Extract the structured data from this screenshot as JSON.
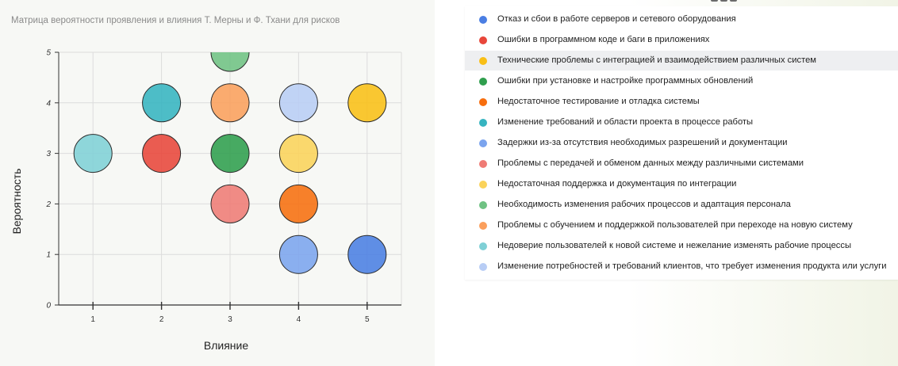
{
  "chart_data": {
    "type": "scatter",
    "title": "Матрица вероятности проявления и влияния Т. Мерны и Ф. Тхани для рисков",
    "xlabel": "Влияние",
    "ylabel": "Вероятность",
    "xlim": [
      0.5,
      5.5
    ],
    "ylim": [
      0,
      5
    ],
    "x_ticks": [
      "1",
      "2",
      "3",
      "4",
      "5"
    ],
    "y_ticks": [
      "0",
      "1",
      "2",
      "3",
      "4",
      "5"
    ],
    "grid": true,
    "legend_position": "right",
    "series": [
      {
        "name": "Отказ и сбои в работе серверов и сетевого оборудования",
        "color": "#4a7ee3",
        "x": 5,
        "y": 1
      },
      {
        "name": "Ошибки в программном коде и баги в приложениях",
        "color": "#e8463a",
        "x": 2,
        "y": 3
      },
      {
        "name": "Технические проблемы с интеграцией и взаимодействием различных систем",
        "color": "#f9bf16",
        "x": 5,
        "y": 4
      },
      {
        "name": "Ошибки при установке и настройке программных обновлений",
        "color": "#2f9e4d",
        "x": 3,
        "y": 3
      },
      {
        "name": "Недостаточное тестирование и отладка системы",
        "color": "#f76e0e",
        "x": 4,
        "y": 2
      },
      {
        "name": "Изменение требований и области проекта в процессе работы",
        "color": "#36b4c0",
        "x": 2,
        "y": 4
      },
      {
        "name": "Задержки из-за отсутствия необходимых разрешений и документации",
        "color": "#7ba4ee",
        "x": 4,
        "y": 1
      },
      {
        "name": "Проблемы с передачей и обменом данных между различными системами",
        "color": "#ef7b75",
        "x": 3,
        "y": 2
      },
      {
        "name": "Недостаточная поддержка и документация по интеграции",
        "color": "#fbd35a",
        "x": 4,
        "y": 3
      },
      {
        "name": "Необходимость изменения рабочих процессов и адаптация персонала",
        "color": "#6fc283",
        "x": 3,
        "y": 5
      },
      {
        "name": "Проблемы с обучением и поддержкой пользователей при переходе на новую систему",
        "color": "#fb9f5c",
        "x": 3,
        "y": 4
      },
      {
        "name": "Недоверие пользователей к новой системе и нежелание изменять рабочие процессы",
        "color": "#7fd0d6",
        "x": 1,
        "y": 3
      },
      {
        "name": "Изменение потребностей и требований клиентов, что требует изменения продукта или услуги",
        "color": "#b8cdf5",
        "x": 4,
        "y": 4
      }
    ]
  }
}
